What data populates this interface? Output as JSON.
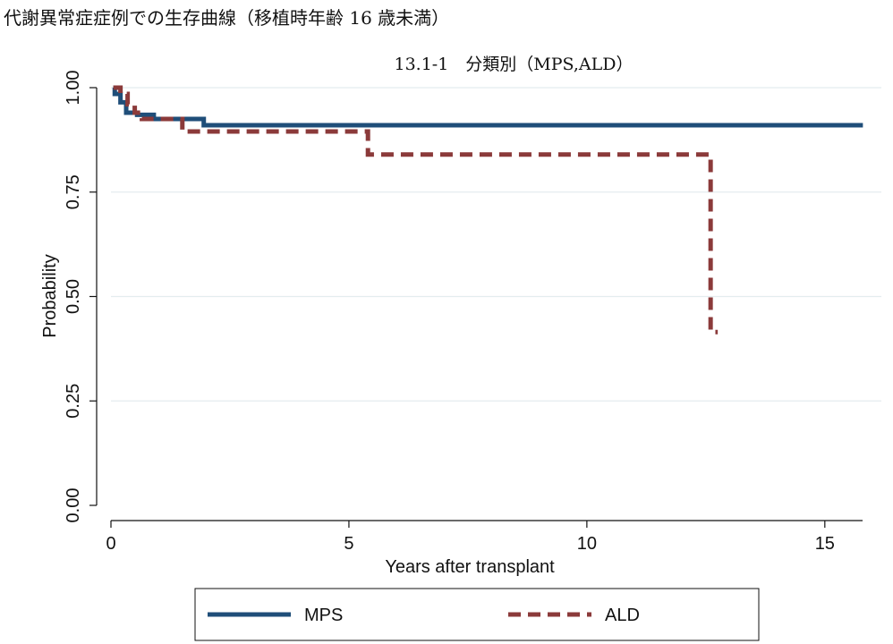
{
  "page_heading": "代謝異常症症例での生存曲線（移植時年齢 16 歳未満）",
  "chart_data": {
    "type": "line",
    "title": "13.1-1　分類別（MPS,ALD）",
    "xlabel": "Years after transplant",
    "ylabel": "Probability",
    "xlim": [
      0,
      16
    ],
    "ylim": [
      0,
      1
    ],
    "x_ticks": [
      0,
      5,
      10,
      15
    ],
    "y_ticks": [
      0,
      0.25,
      0.5,
      0.75,
      1.0
    ],
    "x_tick_labels": [
      "0",
      "5",
      "10",
      "15"
    ],
    "y_tick_labels": [
      "0.00",
      "0.25",
      "0.50",
      "0.75",
      "1.00"
    ],
    "grid": "horizontal",
    "legend_position": "bottom",
    "step": true,
    "series": [
      {
        "name": "MPS",
        "color": "#1f4e79",
        "style": "solid",
        "x": [
          0.05,
          0.08,
          0.2,
          0.32,
          0.55,
          0.9,
          1.95,
          15.8
        ],
        "y": [
          1.0,
          0.985,
          0.965,
          0.94,
          0.935,
          0.925,
          0.91,
          0.91
        ]
      },
      {
        "name": "ALD",
        "color": "#8b3a3a",
        "style": "dashed",
        "x": [
          0.05,
          0.2,
          0.35,
          0.5,
          0.65,
          1.5,
          5.4,
          12.6,
          12.75
        ],
        "y": [
          1.0,
          0.985,
          0.96,
          0.94,
          0.925,
          0.895,
          0.84,
          0.415,
          0.415
        ]
      }
    ]
  }
}
